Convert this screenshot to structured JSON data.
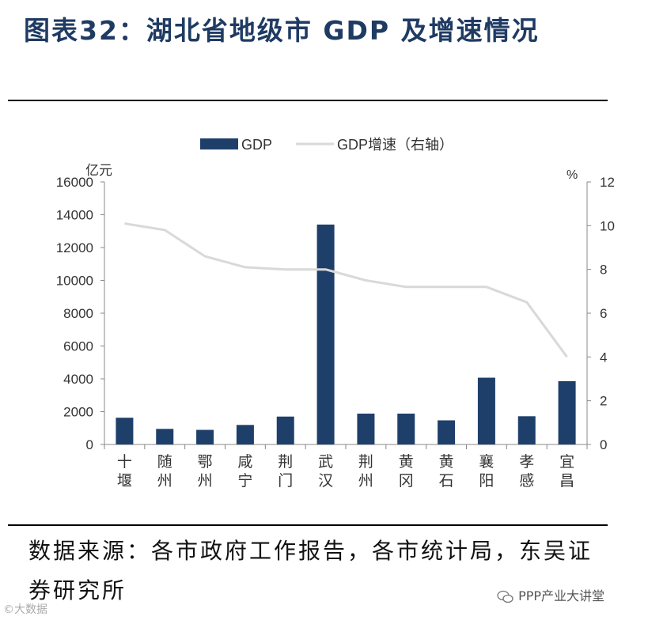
{
  "header": {
    "title": "图表32：湖北省地级市 GDP 及增速情况"
  },
  "chart_data": {
    "type": "bar",
    "categories": [
      "十堰",
      "随州",
      "鄂州",
      "咸宁",
      "荆门",
      "武汉",
      "荆州",
      "黄冈",
      "黄石",
      "襄阳",
      "孝感",
      "宜昌"
    ],
    "series": [
      {
        "name": "GDP",
        "type": "bar",
        "axis": "left",
        "values": [
          1630,
          950,
          890,
          1190,
          1700,
          13400,
          1880,
          1880,
          1470,
          4070,
          1720,
          3860
        ]
      },
      {
        "name": "GDP增速（右轴）",
        "type": "line",
        "axis": "right",
        "values": [
          10.1,
          9.8,
          8.6,
          8.1,
          8.0,
          8.0,
          7.5,
          7.2,
          7.2,
          7.2,
          6.5,
          4.0
        ]
      }
    ],
    "ylabel_left": "亿元",
    "ylabel_right": "%",
    "ylim_left": [
      0,
      16000
    ],
    "ylim_right": [
      0,
      12
    ],
    "yticks_left": [
      "0",
      "2000",
      "4000",
      "6000",
      "8000",
      "10000",
      "12000",
      "14000",
      "16000"
    ],
    "yticks_right": [
      "0",
      "2",
      "4",
      "6",
      "8",
      "10",
      "12"
    ],
    "legend": [
      "GDP",
      "GDP增速（右轴）"
    ],
    "legend_position": "top",
    "grid": false
  },
  "colors": {
    "bar": "#1f3f6b",
    "line": "#d9d9d9",
    "title": "#1f3b63"
  },
  "footer": {
    "source": "数据来源：各市政府工作报告，各市统计局，东吴证券研究所",
    "watermark": "PPP产业大讲堂",
    "watermark_left": "©大数据"
  }
}
